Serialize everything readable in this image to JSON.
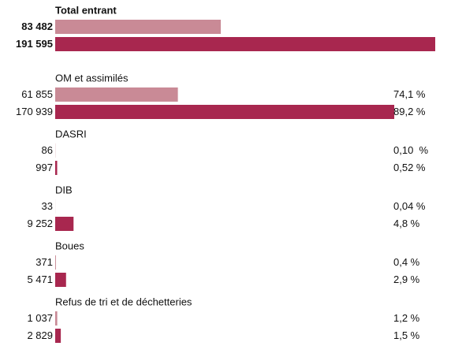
{
  "chart_data": {
    "type": "bar",
    "orientation": "horizontal",
    "categories": [
      "Total entrant",
      "OM et assimilés",
      "DASRI",
      "DIB",
      "Boues",
      "Refus de tri et de déchetteries"
    ],
    "xlim": [
      0,
      191595
    ],
    "series": [
      {
        "color": "#c98a96",
        "values": [
          83482,
          61855,
          86,
          33,
          371,
          1037
        ],
        "value_labels": [
          "83 482",
          "61 855",
          "86",
          "33",
          "371",
          "1 037"
        ],
        "share_labels": [
          null,
          "74,1 %",
          "0,10  %",
          "0,04 %",
          "0,4 %",
          "1,2 %"
        ]
      },
      {
        "color": "#a8274f",
        "values": [
          191595,
          170939,
          997,
          9252,
          5471,
          2829
        ],
        "value_labels": [
          "191 595",
          "170 939",
          "997",
          "9 252",
          "5 471",
          "2 829"
        ],
        "share_labels": [
          null,
          "89,2 %",
          "0,52 %",
          "4,8 %",
          "2,9 %",
          "1,5 %"
        ]
      }
    ]
  }
}
